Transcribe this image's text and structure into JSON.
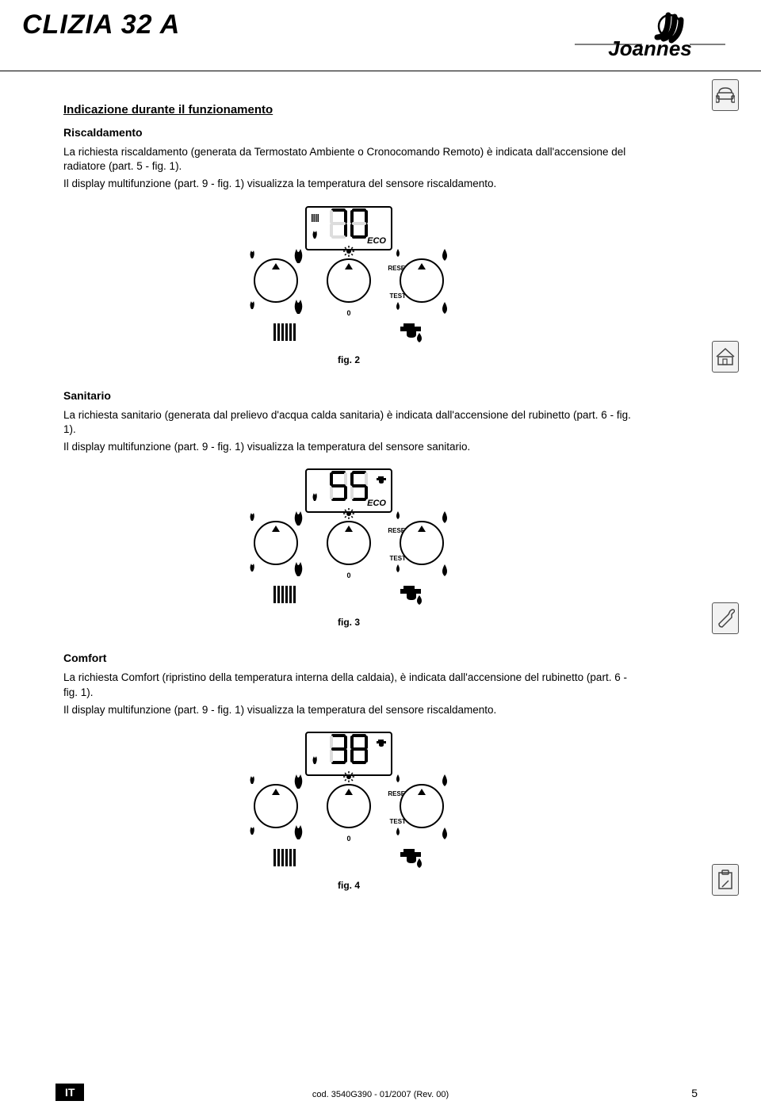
{
  "header": {
    "product": "CLIZIA 32 A",
    "brand": "Joannes"
  },
  "main_title": "Indicazione durante il funzionamento",
  "sections": [
    {
      "title": "Riscaldamento",
      "p1": "La richiesta riscaldamento (generata da Termostato Ambiente o Cronocomando Remoto) è indicata dall'accensione del radiatore (part. 5 - fig. 1).",
      "p2": "Il display multifunzione (part. 9 - fig. 1) visualizza la temperatura del sensore riscaldamento.",
      "display_value": "70",
      "eco": "ECO",
      "show_radiator": true,
      "show_tap": false,
      "fig": "fig. 2"
    },
    {
      "title": "Sanitario",
      "p1": "La richiesta sanitario (generata dal prelievo d'acqua calda sanitaria) è indicata dall'accensione del rubinetto (part. 6 - fig. 1).",
      "p2": "Il display multifunzione (part. 9 - fig. 1) visualizza la temperatura del sensore sanitario.",
      "display_value": "55",
      "eco": "ECO",
      "show_radiator": false,
      "show_tap": true,
      "fig": "fig. 3"
    },
    {
      "title": "Comfort",
      "p1": "La richiesta Comfort (ripristino della temperatura interna della caldaia), è indicata dall'accensione del rubinetto (part. 6 - fig. 1).",
      "p2": "Il display multifunzione (part. 9 - fig. 1) visualizza la temperatura del sensore riscaldamento.",
      "display_value": "38",
      "eco": "",
      "show_radiator": false,
      "show_tap": true,
      "fig": "fig. 4"
    }
  ],
  "dial_labels": {
    "reset": "RESET",
    "test": "TEST",
    "zero": "0"
  },
  "footer": {
    "lang": "IT",
    "code": "cod. 3540G390 - 01/2007 (Rev. 00)",
    "page": "5"
  },
  "colors": {
    "text": "#000000",
    "bg": "#ffffff",
    "tab_bg": "#f2f2f2",
    "tab_border": "#555555"
  }
}
